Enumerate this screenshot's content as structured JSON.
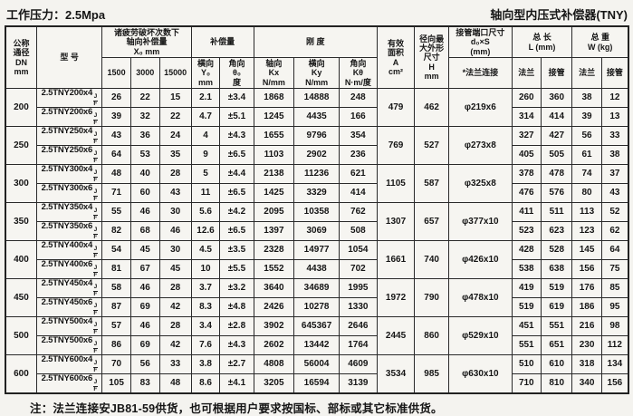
{
  "page": {
    "top_left_title": "工作压力：2.5Mpa",
    "top_right_title": "轴向型内压式补偿器(TNY)",
    "footnote": "注：法兰连接安JB81-59供货，也可根据用户要求按国标、部标或其它标准供货。"
  },
  "table": {
    "header": {
      "dn": "公称\n通径\nDN\nmm",
      "model": "型    号",
      "fatigue_group": "诸疲劳破坏次数下\n轴向补偿量\nX₀  mm",
      "cycle_1500": "1500",
      "cycle_3000": "3000",
      "cycle_15000": "15000",
      "comp_group": "补偿量",
      "comp_lateral": "横向\nY₀\nmm",
      "comp_angular": "角向\nθ₀\n度",
      "stiffness_group": "刚    度",
      "stiff_axial": "轴向\nKx\nN/mm",
      "stiff_lateral": "横向\nKy\nN/mm",
      "stiff_angular": "角向\nKθ\nN·m/度",
      "area": "有效\n面积\nA\ncm²",
      "radial": "径向最\n大外形\n尺寸\nH\nmm",
      "port_group": "接管端口尺寸\nd₀×S\n(mm)",
      "port_sub": "*法兰连接",
      "length_group": "总  长\nL  (mm)",
      "weight_group": "总  重\nW  (kg)",
      "flange": "法兰",
      "pipe_conn": "接管"
    },
    "model_suffix": {
      "top": "J",
      "bottom": "F"
    },
    "groups": [
      {
        "dn": "200",
        "a": "479",
        "h": "462",
        "pipe": "φ219x6",
        "rows": [
          {
            "model": "2.5TNY200x4",
            "x1500": "26",
            "x3000": "22",
            "x15000": "15",
            "y0": "2.1",
            "theta": "±3.4",
            "kx": "1868",
            "ky": "14888",
            "ktheta": "248",
            "l_flange": "260",
            "l_pipe": "360",
            "w_flange": "38",
            "w_pipe": "12"
          },
          {
            "model": "2.5TNY200x6",
            "x1500": "39",
            "x3000": "32",
            "x15000": "22",
            "y0": "4.7",
            "theta": "±5.1",
            "kx": "1245",
            "ky": "4435",
            "ktheta": "166",
            "l_flange": "314",
            "l_pipe": "414",
            "w_flange": "39",
            "w_pipe": "13"
          }
        ]
      },
      {
        "dn": "250",
        "a": "769",
        "h": "527",
        "pipe": "φ273x8",
        "rows": [
          {
            "model": "2.5TNY250x4",
            "x1500": "43",
            "x3000": "36",
            "x15000": "24",
            "y0": "4",
            "theta": "±4.3",
            "kx": "1655",
            "ky": "9796",
            "ktheta": "354",
            "l_flange": "327",
            "l_pipe": "427",
            "w_flange": "56",
            "w_pipe": "33"
          },
          {
            "model": "2.5TNY250x6",
            "x1500": "64",
            "x3000": "53",
            "x15000": "35",
            "y0": "9",
            "theta": "±6.5",
            "kx": "1103",
            "ky": "2902",
            "ktheta": "236",
            "l_flange": "405",
            "l_pipe": "505",
            "w_flange": "61",
            "w_pipe": "38"
          }
        ]
      },
      {
        "dn": "300",
        "a": "1105",
        "h": "587",
        "pipe": "φ325x8",
        "rows": [
          {
            "model": "2.5TNY300x4",
            "x1500": "48",
            "x3000": "40",
            "x15000": "28",
            "y0": "5",
            "theta": "±4.4",
            "kx": "2138",
            "ky": "11236",
            "ktheta": "621",
            "l_flange": "378",
            "l_pipe": "478",
            "w_flange": "74",
            "w_pipe": "37"
          },
          {
            "model": "2.5TNY300x6",
            "x1500": "71",
            "x3000": "60",
            "x15000": "43",
            "y0": "11",
            "theta": "±6.5",
            "kx": "1425",
            "ky": "3329",
            "ktheta": "414",
            "l_flange": "476",
            "l_pipe": "576",
            "w_flange": "80",
            "w_pipe": "43"
          }
        ]
      },
      {
        "dn": "350",
        "a": "1307",
        "h": "657",
        "pipe": "φ377x10",
        "rows": [
          {
            "model": "2.5TNY350x4",
            "x1500": "55",
            "x3000": "46",
            "x15000": "30",
            "y0": "5.6",
            "theta": "±4.2",
            "kx": "2095",
            "ky": "10358",
            "ktheta": "762",
            "l_flange": "411",
            "l_pipe": "511",
            "w_flange": "113",
            "w_pipe": "52"
          },
          {
            "model": "2.5TNY350x6",
            "x1500": "82",
            "x3000": "68",
            "x15000": "46",
            "y0": "12.6",
            "theta": "±6.5",
            "kx": "1397",
            "ky": "3069",
            "ktheta": "508",
            "l_flange": "523",
            "l_pipe": "623",
            "w_flange": "123",
            "w_pipe": "62"
          }
        ]
      },
      {
        "dn": "400",
        "a": "1661",
        "h": "740",
        "pipe": "φ426x10",
        "rows": [
          {
            "model": "2.5TNY400x4",
            "x1500": "54",
            "x3000": "45",
            "x15000": "30",
            "y0": "4.5",
            "theta": "±3.5",
            "kx": "2328",
            "ky": "14977",
            "ktheta": "1054",
            "l_flange": "428",
            "l_pipe": "528",
            "w_flange": "145",
            "w_pipe": "64"
          },
          {
            "model": "2.5TNY400x6",
            "x1500": "81",
            "x3000": "67",
            "x15000": "45",
            "y0": "10",
            "theta": "±5.5",
            "kx": "1552",
            "ky": "4438",
            "ktheta": "702",
            "l_flange": "538",
            "l_pipe": "638",
            "w_flange": "156",
            "w_pipe": "75"
          }
        ]
      },
      {
        "dn": "450",
        "a": "1972",
        "h": "790",
        "pipe": "φ478x10",
        "rows": [
          {
            "model": "2.5TNY450x4",
            "x1500": "58",
            "x3000": "46",
            "x15000": "28",
            "y0": "3.7",
            "theta": "±3.2",
            "kx": "3640",
            "ky": "34689",
            "ktheta": "1995",
            "l_flange": "419",
            "l_pipe": "519",
            "w_flange": "176",
            "w_pipe": "85"
          },
          {
            "model": "2.5TNY450x6",
            "x1500": "87",
            "x3000": "69",
            "x15000": "42",
            "y0": "8.3",
            "theta": "±4.8",
            "kx": "2426",
            "ky": "10278",
            "ktheta": "1330",
            "l_flange": "519",
            "l_pipe": "619",
            "w_flange": "186",
            "w_pipe": "95"
          }
        ]
      },
      {
        "dn": "500",
        "a": "2445",
        "h": "860",
        "pipe": "φ529x10",
        "rows": [
          {
            "model": "2.5TNY500x4",
            "x1500": "57",
            "x3000": "46",
            "x15000": "28",
            "y0": "3.4",
            "theta": "±2.8",
            "kx": "3902",
            "ky": "645367",
            "ktheta": "2646",
            "l_flange": "451",
            "l_pipe": "551",
            "w_flange": "216",
            "w_pipe": "98"
          },
          {
            "model": "2.5TNY500x6",
            "x1500": "86",
            "x3000": "69",
            "x15000": "42",
            "y0": "7.6",
            "theta": "±4.3",
            "kx": "2602",
            "ky": "13442",
            "ktheta": "1764",
            "l_flange": "551",
            "l_pipe": "651",
            "w_flange": "230",
            "w_pipe": "112"
          }
        ]
      },
      {
        "dn": "600",
        "a": "3534",
        "h": "985",
        "pipe": "φ630x10",
        "rows": [
          {
            "model": "2.5TNY600x4",
            "x1500": "70",
            "x3000": "56",
            "x15000": "33",
            "y0": "3.8",
            "theta": "±2.7",
            "kx": "4808",
            "ky": "56004",
            "ktheta": "4609",
            "l_flange": "510",
            "l_pipe": "610",
            "w_flange": "318",
            "w_pipe": "134"
          },
          {
            "model": "2.5TNY600x6",
            "x1500": "105",
            "x3000": "83",
            "x15000": "48",
            "y0": "8.6",
            "theta": "±4.1",
            "kx": "3205",
            "ky": "16594",
            "ktheta": "3139",
            "l_flange": "710",
            "l_pipe": "810",
            "w_flange": "340",
            "w_pipe": "156"
          }
        ]
      }
    ]
  }
}
